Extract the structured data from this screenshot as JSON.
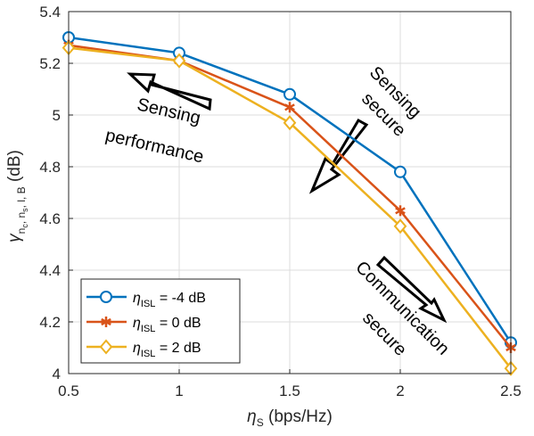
{
  "chart_data": {
    "type": "line",
    "x": [
      0.5,
      1,
      1.5,
      2,
      2.5
    ],
    "xlim": [
      0.5,
      2.5
    ],
    "ylim": [
      4,
      5.4
    ],
    "xticks": [
      "0.5",
      "1",
      "1.5",
      "2",
      "2.5"
    ],
    "yticks": [
      "4",
      "4.2",
      "4.4",
      "4.6",
      "4.8",
      "5",
      "5.2",
      "5.4"
    ],
    "xlabel": "ηS (bps/Hz)",
    "ylabel": "γnc, ns, l, B (dB)",
    "grid": true,
    "legend_position": "bottom-left",
    "series": [
      {
        "name": "ηISL = -4 dB",
        "color": "#0072BD",
        "marker": "circle",
        "values": [
          5.3,
          5.24,
          5.08,
          4.78,
          4.12
        ]
      },
      {
        "name": "ηISL = 0 dB",
        "color": "#D95319",
        "marker": "asterisk",
        "values": [
          5.27,
          5.21,
          5.03,
          4.63,
          4.1
        ]
      },
      {
        "name": "ηISL = 2 dB",
        "color": "#EDB120",
        "marker": "diamond",
        "values": [
          5.26,
          5.21,
          4.97,
          4.57,
          4.02
        ]
      }
    ],
    "annotations": [
      {
        "lines": [
          "Sensing",
          "performance"
        ]
      },
      {
        "lines": [
          "Sensing",
          "secure"
        ]
      },
      {
        "lines": [
          "Communication",
          "secure"
        ]
      }
    ]
  }
}
